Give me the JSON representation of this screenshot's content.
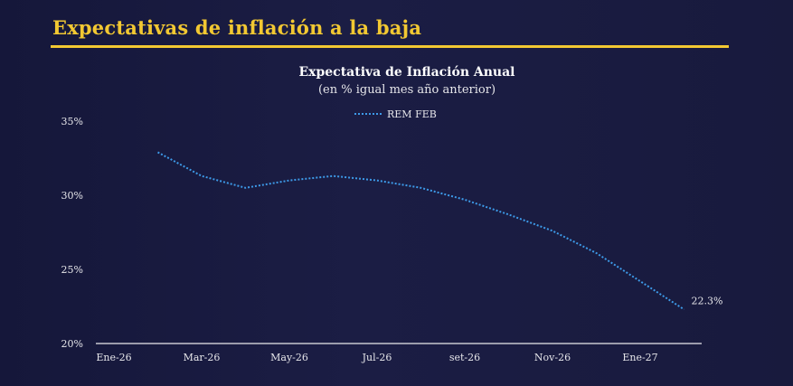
{
  "slide": {
    "title": "Expectativas de inflación a la baja"
  },
  "chart_data": {
    "type": "line",
    "title": "Expectativa de Inflación Anual",
    "subtitle": "(en % igual mes año anterior)",
    "x_tick_labels": [
      "Ene-26",
      "Mar-26",
      "May-26",
      "Jul-26",
      "set-26",
      "Nov-26",
      "Ene-27"
    ],
    "y_tick_labels": [
      "35%",
      "30%",
      "25%",
      "20%"
    ],
    "ylim": [
      20,
      35
    ],
    "y_ticks": [
      20,
      25,
      30,
      35
    ],
    "x": [
      "Feb-26",
      "Mar-26",
      "Apr-26",
      "May-26",
      "Jun-26",
      "Jul-26",
      "Aug-26",
      "set-26",
      "Oct-26",
      "Nov-26",
      "Dec-26",
      "Ene-27",
      "Feb-27"
    ],
    "series": [
      {
        "name": "REM FEB",
        "values": [
          32.9,
          31.3,
          30.5,
          31.0,
          31.3,
          31.0,
          30.5,
          29.7,
          28.7,
          27.6,
          26.1,
          24.2,
          22.3
        ]
      }
    ],
    "annotations": [
      {
        "text": "22.3%",
        "series": "REM FEB",
        "point": "last"
      }
    ],
    "legend_position": "top-center",
    "grid": false,
    "colors": {
      "series": "#3d9ae8",
      "axis": "#c8c8d0",
      "text": "#e6e6ea",
      "title_accent": "#f2c832"
    }
  }
}
